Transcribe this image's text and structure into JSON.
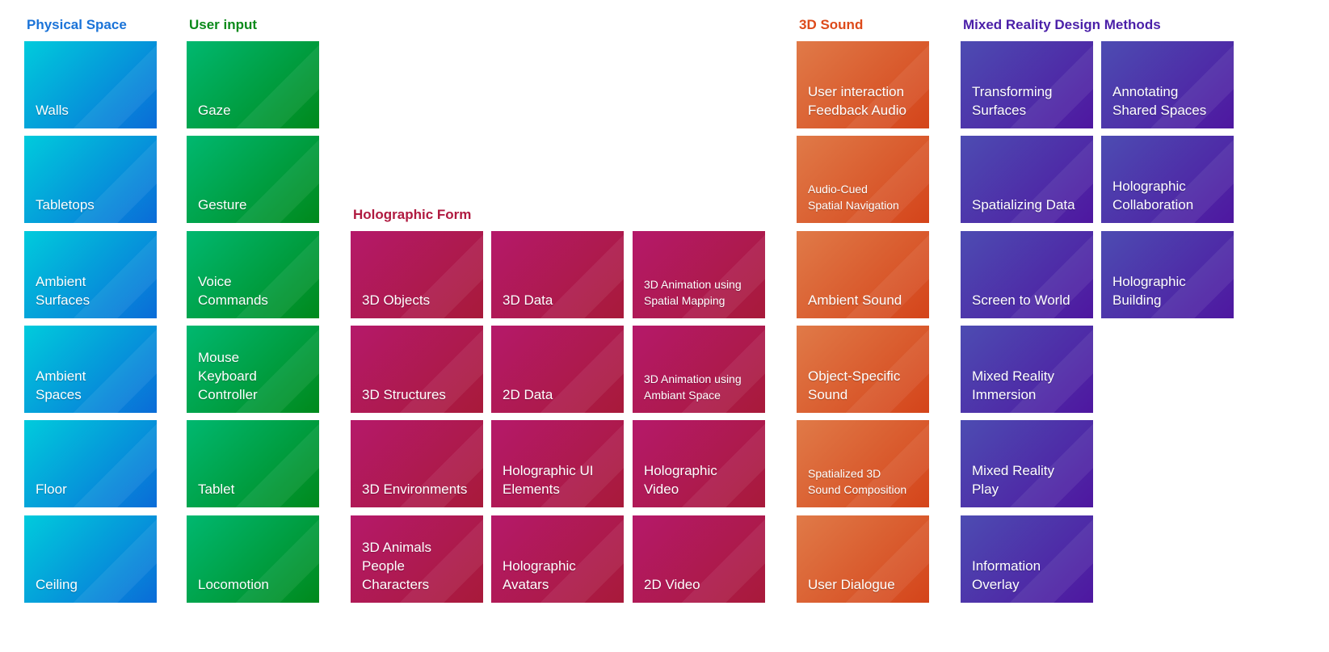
{
  "groups": [
    {
      "id": "physical-space",
      "title": "Physical Space",
      "color": "#1a73d8",
      "grad": [
        "#00cbdc",
        "#0a6cd8"
      ],
      "items": [
        "Walls",
        "Tabletops",
        "Ambient\nSurfaces",
        "Ambient\nSpaces",
        "Floor",
        "Ceiling"
      ]
    },
    {
      "id": "user-input",
      "title": "User input",
      "color": "#0a8a1a",
      "grad": [
        "#00b870",
        "#00891c"
      ],
      "items": [
        "Gaze",
        "Gesture",
        "Voice\nCommands",
        "Mouse\nKeyboard\nController",
        "Tablet",
        "Locomotion"
      ]
    },
    {
      "id": "holographic-form",
      "title": "Holographic Form",
      "color": "#b01a40",
      "grad": [
        "#b5196a",
        "#a81a3a"
      ],
      "items": [
        "3D Objects",
        "3D Data",
        "3D Animation using\nSpatial Mapping",
        "3D Structures",
        "2D Data",
        "3D Animation using\nAmbiant Space",
        "3D Environments",
        "Holographic UI\nElements",
        "Holographic\nVideo",
        "3D Animals\nPeople\nCharacters",
        "Holographic\nAvatars",
        "2D Video"
      ]
    },
    {
      "id": "3d-sound",
      "title": "3D Sound",
      "color": "#dd4a1a",
      "grad": [
        "#e07a48",
        "#d4441a"
      ],
      "items": [
        "User interaction\nFeedback Audio",
        "Audio-Cued\nSpatial Navigation",
        "Ambient Sound",
        "Object-Specific\nSound",
        "Spatialized 3D\nSound Composition",
        "User Dialogue"
      ]
    },
    {
      "id": "mixed-reality-design-methods",
      "title": "Mixed Reality Design Methods",
      "color": "#4a1fa8",
      "grad": [
        "#4d4cb2",
        "#4e17a0"
      ],
      "items": [
        "Transforming\nSurfaces",
        "Annotating\nShared Spaces",
        "Spatializing Data",
        "Holographic\nCollaboration",
        "Screen to World",
        "Holographic\nBuilding",
        "Mixed Reality\nImmersion",
        "Mixed Reality\nPlay",
        "Information\nOverlay"
      ]
    }
  ]
}
